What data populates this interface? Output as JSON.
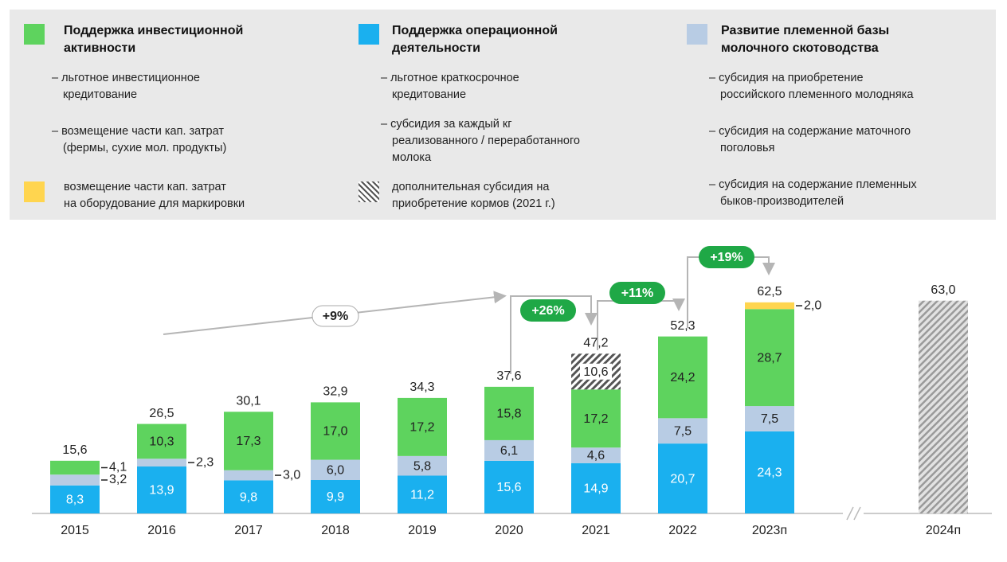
{
  "chart_data": {
    "type": "stacked_bar",
    "categories": [
      "2015",
      "2016",
      "2017",
      "2018",
      "2019",
      "2020",
      "2021",
      "2022",
      "2023п",
      "2024п"
    ],
    "ylim": [
      0,
      70
    ],
    "axis_break": true,
    "series": [
      {
        "name": "Поддержка операционной\nдеятельности",
        "color": "#1ab0ef",
        "label_color": "#ffffff",
        "notes": [
          "– льготное краткосрочное\nкредитование",
          "– субсидия за каждый кг\nреализованного / переработанного\nмолока"
        ],
        "values": [
          8.3,
          13.9,
          9.8,
          9.9,
          11.2,
          15.6,
          14.9,
          20.7,
          24.3,
          null
        ],
        "value_labels": [
          "8,3",
          "13,9",
          "9,8",
          "9,9",
          "11,2",
          "15,6",
          "14,9",
          "20,7",
          "24,3",
          null
        ]
      },
      {
        "name": "Развитие племенной базы\nмолочного скотоводства",
        "color": "#b8cce4",
        "label_color": "#222222",
        "notes": [
          "– субсидия на приобретение\nроссийского племенного молодняка",
          "– субсидия на содержание маточного\nпоголовья",
          "– субсидия на содержание племенных\nбыков-производителей"
        ],
        "values": [
          3.2,
          2.3,
          3.0,
          6.0,
          5.8,
          6.1,
          4.6,
          7.5,
          7.5,
          null
        ],
        "value_labels": [
          "3,2",
          "2,3",
          "3,0",
          "6,0",
          "5,8",
          "6,1",
          "4,6",
          "7,5",
          "7,5",
          null
        ]
      },
      {
        "name": "Поддержка инвестиционной\nактивности",
        "color": "#5ed35e",
        "label_color": "#222222",
        "notes": [
          "– льготное инвестиционное\nкредитование",
          "– возмещение части кап. затрат\n(фермы, сухие мол. продукты)"
        ],
        "values": [
          4.1,
          10.3,
          17.3,
          17.0,
          17.2,
          15.8,
          17.2,
          24.2,
          28.7,
          null
        ],
        "value_labels": [
          "4,1",
          "10,3",
          "17,3",
          "17,0",
          "17,2",
          "15,8",
          "17,2",
          "24,2",
          "28,7",
          null
        ]
      },
      {
        "name": "дополнительная субсидия на\nприобретение кормов (2021 г.)",
        "color": "hatch",
        "label_color": "#222222",
        "values": [
          null,
          null,
          null,
          null,
          null,
          null,
          10.6,
          null,
          null,
          null
        ],
        "value_labels": [
          null,
          null,
          null,
          null,
          null,
          null,
          "10,6",
          null,
          null,
          null
        ]
      },
      {
        "name": "возмещение части кап. затрат\nна оборудование для маркировки",
        "color": "#ffd54f",
        "label_color": "#222222",
        "values": [
          null,
          null,
          null,
          null,
          null,
          null,
          null,
          null,
          2.0,
          null
        ],
        "value_labels": [
          null,
          null,
          null,
          null,
          null,
          null,
          null,
          null,
          "2,0",
          null
        ]
      }
    ],
    "totals": {
      "values": [
        15.6,
        26.5,
        30.1,
        32.9,
        34.3,
        37.6,
        47.2,
        52.3,
        62.5,
        63.0
      ],
      "value_labels": [
        "15,6",
        "26,5",
        "30,1",
        "32,9",
        "34,3",
        "37,6",
        "47,2",
        "52,3",
        "62,5",
        "63,0"
      ]
    },
    "annotations": [
      "+9%",
      "+26%",
      "+11%",
      "+19%"
    ]
  }
}
